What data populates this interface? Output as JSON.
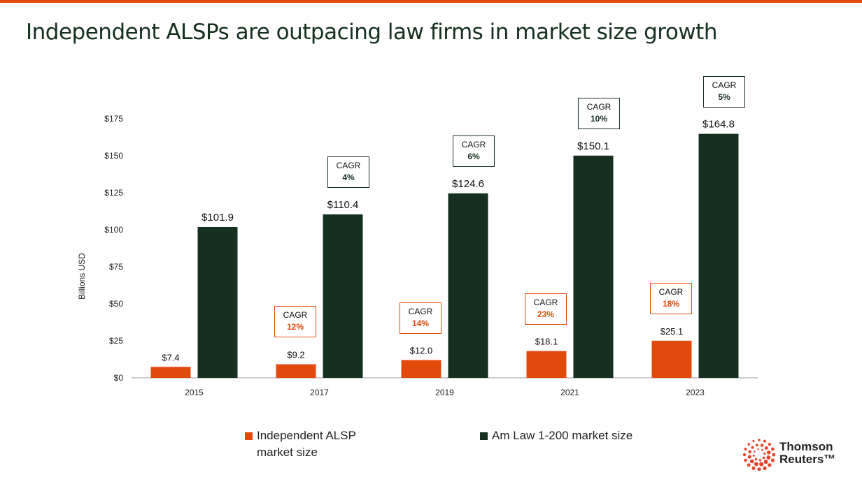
{
  "title": "Independent ALSPs are outpacing law firms in market size growth",
  "chart_data": {
    "type": "bar",
    "title": "Independent ALSPs are outpacing law firms in market size growth",
    "categories": [
      "2015",
      "2017",
      "2019",
      "2021",
      "2023"
    ],
    "ylabel": "Billions USD",
    "xlabel": "",
    "ylim": [
      0,
      175
    ],
    "yticks": [
      "$0",
      "$25",
      "$50",
      "$75",
      "$100",
      "$125",
      "$150",
      "$175"
    ],
    "grid": false,
    "legend_position": "bottom",
    "series": [
      {
        "name": "Independent ALSP market size",
        "color": "#e04a0b",
        "values": [
          7.4,
          9.2,
          12.0,
          18.1,
          25.1
        ],
        "labels": [
          "$7.4",
          "$9.2",
          "$12.0",
          "$18.1",
          "$25.1"
        ],
        "cagr": [
          null,
          "12%",
          "14%",
          "23%",
          "18%"
        ]
      },
      {
        "name": "Am Law 1-200 market size",
        "color": "#163020",
        "values": [
          101.9,
          110.4,
          124.6,
          150.1,
          164.8
        ],
        "labels": [
          "$101.9",
          "$110.4",
          "$124.6",
          "$150.1",
          "$164.8"
        ],
        "cagr": [
          null,
          "4%",
          "6%",
          "10%",
          "5%"
        ]
      }
    ],
    "cagr_label": "CAGR"
  },
  "legend": {
    "alsp_line1": "Independent ALSP",
    "alsp_line2": "market size",
    "amlaw": "Am Law 1-200 market size"
  },
  "logo": {
    "line1": "Thomson",
    "line2": "Reuters™"
  }
}
